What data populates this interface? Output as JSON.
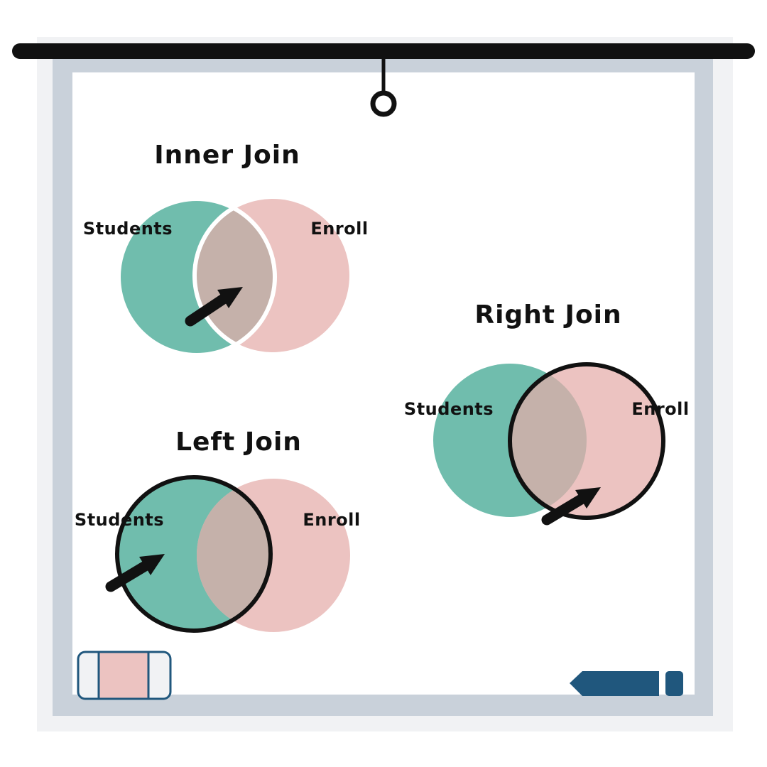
{
  "colors": {
    "board_shadow": "#f1f2f4",
    "board_frame": "#c9d1da",
    "board_surface": "#ffffff",
    "rail": "#111111",
    "students": "#70bdad",
    "enroll": "#ecc3c1",
    "overlap": "#c5b1aa",
    "outline": "#111111",
    "marker": "#20577d",
    "eraser_pad": "#ecc3c1",
    "eraser_body": "#f1f2f4"
  },
  "diagrams": {
    "inner": {
      "title": "Inner Join",
      "left_label": "Students",
      "right_label": "Enroll"
    },
    "left": {
      "title": "Left Join",
      "left_label": "Students",
      "right_label": "Enroll"
    },
    "right": {
      "title": "Right Join",
      "left_label": "Students",
      "right_label": "Enroll"
    }
  },
  "icons": {
    "hanger": "hanger-ring-icon",
    "eraser": "eraser-icon",
    "marker": "marker-icon",
    "arrow": "arrow-icon"
  }
}
